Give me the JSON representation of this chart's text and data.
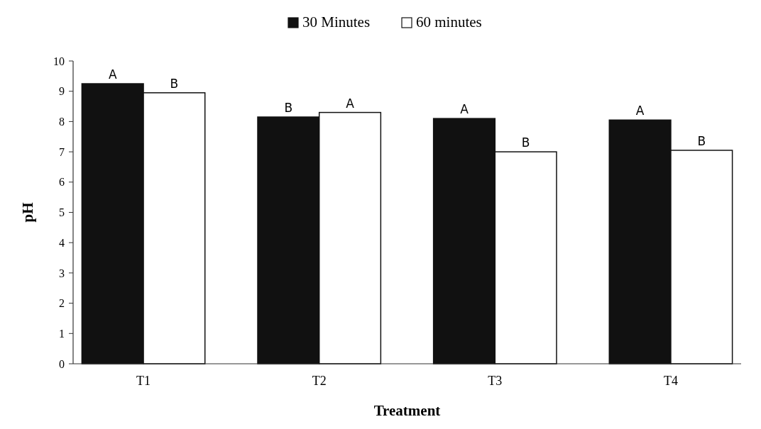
{
  "chart_data": {
    "type": "bar",
    "xlabel": "Treatment",
    "ylabel": "pH",
    "categories": [
      "T1",
      "T2",
      "T3",
      "T4"
    ],
    "series": [
      {
        "name": "30 Minutes",
        "color": "#111111",
        "values": [
          9.25,
          8.15,
          8.1,
          8.05
        ],
        "value_labels": [
          "A",
          "B",
          "A",
          "A"
        ]
      },
      {
        "name": "60 minutes",
        "color": "#ffffff",
        "values": [
          8.95,
          8.3,
          7.0,
          7.05
        ],
        "value_labels": [
          "B",
          "A",
          "B",
          "B"
        ]
      }
    ],
    "ylim": [
      0,
      10
    ],
    "yticks": [
      0,
      1,
      2,
      3,
      4,
      5,
      6,
      7,
      8,
      9,
      10
    ],
    "grid": false,
    "legend": "top"
  }
}
